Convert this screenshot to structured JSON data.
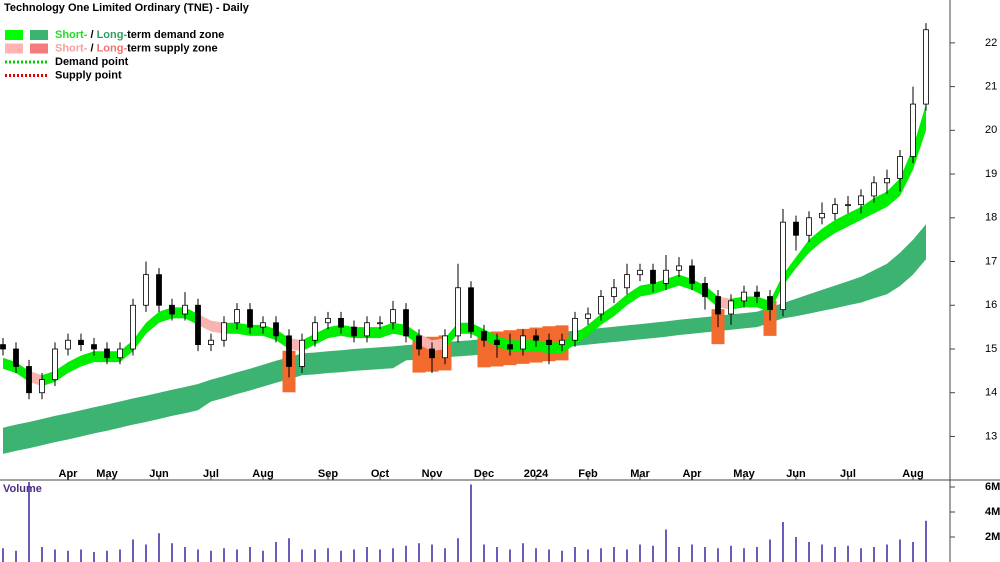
{
  "chart_data": [
    {
      "type": "candlestick",
      "title": "Technology One Limited Ordinary (TNE) - Daily",
      "categories": [
        null,
        null,
        null,
        null,
        null,
        "Apr",
        null,
        null,
        "May",
        null,
        null,
        null,
        "Jun",
        null,
        null,
        null,
        "Jul",
        null,
        null,
        null,
        "Aug",
        null,
        null,
        null,
        null,
        "Sep",
        null,
        null,
        null,
        "Oct",
        null,
        null,
        null,
        "Nov",
        null,
        null,
        null,
        "Dec",
        null,
        null,
        null,
        "2024",
        null,
        null,
        null,
        "Feb",
        null,
        null,
        null,
        "Mar",
        null,
        null,
        null,
        "Apr",
        null,
        null,
        null,
        "May",
        null,
        null,
        null,
        "Jun",
        null,
        null,
        null,
        "Jul",
        null,
        null,
        null,
        null,
        "Aug",
        null
      ],
      "open": [
        15.1,
        15.0,
        14.6,
        14.0,
        14.3,
        15.0,
        15.2,
        15.1,
        15.0,
        14.8,
        15.0,
        16.0,
        16.7,
        16.0,
        15.8,
        16.0,
        15.1,
        15.2,
        15.6,
        15.9,
        15.5,
        15.6,
        15.3,
        14.6,
        15.2,
        15.6,
        15.7,
        15.5,
        15.3,
        15.6,
        15.6,
        15.9,
        15.3,
        15.0,
        14.8,
        15.3,
        16.4,
        15.4,
        15.2,
        15.1,
        15.0,
        15.3,
        15.2,
        15.1,
        15.2,
        15.7,
        15.8,
        16.2,
        16.4,
        16.7,
        16.8,
        16.5,
        16.8,
        16.9,
        16.5,
        16.2,
        15.8,
        16.1,
        16.3,
        16.2,
        15.9,
        17.9,
        17.6,
        18.0,
        18.1,
        18.3,
        18.3,
        18.5,
        18.8,
        18.9,
        19.4,
        20.6
      ],
      "high": [
        15.25,
        15.15,
        14.75,
        14.45,
        15.15,
        15.35,
        15.35,
        15.25,
        15.15,
        15.15,
        16.15,
        17.0,
        16.85,
        16.15,
        16.3,
        16.15,
        15.35,
        15.75,
        16.05,
        16.05,
        15.75,
        15.75,
        15.45,
        15.35,
        15.75,
        15.85,
        15.85,
        15.65,
        15.75,
        15.75,
        16.1,
        16.05,
        15.45,
        15.15,
        15.45,
        16.95,
        16.55,
        15.55,
        15.35,
        15.35,
        15.45,
        15.45,
        15.35,
        15.35,
        15.85,
        15.95,
        16.35,
        16.6,
        16.95,
        16.95,
        16.95,
        17.15,
        17.1,
        17.05,
        16.65,
        16.35,
        16.25,
        16.45,
        16.45,
        16.35,
        18.2,
        18.05,
        18.15,
        18.35,
        18.45,
        18.5,
        18.65,
        18.95,
        19.1,
        19.55,
        21.0,
        22.45
      ],
      "low": [
        14.85,
        14.45,
        13.85,
        13.85,
        14.15,
        14.85,
        14.95,
        14.85,
        14.65,
        14.65,
        14.85,
        15.85,
        15.85,
        15.65,
        15.65,
        14.95,
        14.95,
        15.05,
        15.45,
        15.35,
        15.35,
        15.15,
        14.35,
        14.45,
        15.05,
        15.45,
        15.35,
        15.15,
        15.15,
        15.45,
        15.45,
        15.15,
        14.85,
        14.45,
        14.65,
        15.15,
        15.25,
        15.05,
        14.8,
        14.85,
        14.85,
        15.05,
        14.65,
        14.95,
        15.05,
        15.55,
        15.65,
        16.05,
        16.25,
        16.55,
        16.3,
        16.35,
        16.65,
        16.35,
        15.9,
        15.5,
        15.55,
        15.95,
        16.05,
        15.65,
        15.75,
        17.25,
        17.45,
        17.85,
        17.95,
        18.1,
        18.1,
        18.35,
        18.55,
        18.6,
        19.25,
        20.45
      ],
      "close": [
        15.0,
        14.6,
        14.0,
        14.3,
        15.0,
        15.2,
        15.1,
        15.0,
        14.8,
        15.0,
        16.0,
        16.7,
        16.0,
        15.8,
        16.0,
        15.1,
        15.2,
        15.6,
        15.9,
        15.5,
        15.6,
        15.3,
        14.6,
        15.2,
        15.6,
        15.7,
        15.5,
        15.3,
        15.6,
        15.6,
        15.9,
        15.3,
        15.0,
        14.8,
        15.3,
        16.4,
        15.4,
        15.2,
        15.1,
        15.0,
        15.3,
        15.2,
        15.1,
        15.2,
        15.7,
        15.8,
        16.2,
        16.4,
        16.7,
        16.8,
        16.5,
        16.8,
        16.9,
        16.5,
        16.2,
        15.8,
        16.1,
        16.3,
        16.2,
        15.9,
        17.9,
        17.6,
        18.0,
        18.1,
        18.3,
        18.3,
        18.5,
        18.8,
        18.9,
        19.4,
        20.6,
        22.3
      ],
      "up_color": "#ffffff",
      "down_color": "#000000",
      "short_term_zone": {
        "color": "#00ee00",
        "supply_color": "#f8b4b0",
        "upper": [
          14.8,
          14.7,
          14.5,
          14.4,
          14.5,
          14.7,
          14.85,
          14.95,
          14.95,
          14.95,
          15.2,
          15.6,
          15.85,
          15.95,
          15.95,
          15.8,
          15.65,
          15.6,
          15.6,
          15.55,
          15.55,
          15.45,
          15.25,
          15.2,
          15.35,
          15.5,
          15.55,
          15.5,
          15.5,
          15.5,
          15.6,
          15.55,
          15.35,
          15.2,
          15.25,
          15.6,
          15.6,
          15.45,
          15.3,
          15.2,
          15.2,
          15.2,
          15.15,
          15.15,
          15.35,
          15.55,
          15.8,
          16.0,
          16.25,
          16.45,
          16.5,
          16.6,
          16.7,
          16.6,
          16.45,
          16.2,
          16.15,
          16.2,
          16.2,
          16.1,
          16.7,
          17.1,
          17.5,
          17.75,
          17.95,
          18.1,
          18.25,
          18.45,
          18.6,
          18.9,
          19.6,
          20.6
        ],
        "lower": [
          14.55,
          14.45,
          14.25,
          14.15,
          14.25,
          14.45,
          14.6,
          14.7,
          14.7,
          14.7,
          14.95,
          15.35,
          15.6,
          15.7,
          15.7,
          15.55,
          15.4,
          15.35,
          15.35,
          15.3,
          15.3,
          15.2,
          15.0,
          14.95,
          15.1,
          15.25,
          15.3,
          15.25,
          15.25,
          15.25,
          15.35,
          15.3,
          15.1,
          14.95,
          15.0,
          15.35,
          15.35,
          15.2,
          15.05,
          14.95,
          14.95,
          14.95,
          14.9,
          14.9,
          15.1,
          15.3,
          15.55,
          15.75,
          16.0,
          16.2,
          16.25,
          16.35,
          16.45,
          16.35,
          16.2,
          15.95,
          15.9,
          15.95,
          15.95,
          15.85,
          16.45,
          16.85,
          17.2,
          17.45,
          17.65,
          17.8,
          17.95,
          18.1,
          18.25,
          18.5,
          19.1,
          20.0
        ]
      },
      "long_term_zone": {
        "color": "#3cb371",
        "supply_color": "#f26a2e",
        "upper": [
          13.2,
          13.27,
          13.33,
          13.4,
          13.47,
          13.53,
          13.6,
          13.67,
          13.73,
          13.8,
          13.87,
          13.93,
          14.0,
          14.07,
          14.13,
          14.2,
          14.3,
          14.38,
          14.47,
          14.55,
          14.64,
          14.73,
          14.81,
          14.9,
          14.92,
          14.95,
          14.97,
          15.0,
          15.02,
          15.04,
          15.06,
          15.09,
          15.11,
          15.13,
          15.16,
          15.18,
          15.2,
          15.23,
          15.25,
          15.28,
          15.31,
          15.34,
          15.37,
          15.39,
          15.42,
          15.45,
          15.48,
          15.51,
          15.54,
          15.57,
          15.6,
          15.63,
          15.67,
          15.7,
          15.73,
          15.76,
          15.79,
          15.82,
          15.85,
          15.95,
          16.05,
          16.15,
          16.25,
          16.35,
          16.45,
          16.55,
          16.65,
          16.8,
          16.95,
          17.2,
          17.5,
          17.85
        ],
        "lower": [
          12.6,
          12.67,
          12.73,
          12.8,
          12.87,
          12.93,
          13.0,
          13.07,
          13.13,
          13.2,
          13.27,
          13.33,
          13.4,
          13.47,
          13.53,
          13.6,
          13.8,
          13.88,
          13.97,
          14.05,
          14.14,
          14.23,
          14.31,
          14.4,
          14.42,
          14.45,
          14.47,
          14.5,
          14.52,
          14.54,
          14.56,
          14.74,
          14.76,
          14.78,
          14.81,
          14.83,
          14.85,
          14.88,
          14.9,
          14.93,
          14.96,
          14.99,
          15.02,
          15.04,
          15.07,
          15.1,
          15.13,
          15.16,
          15.19,
          15.22,
          15.25,
          15.28,
          15.32,
          15.35,
          15.38,
          15.41,
          15.44,
          15.47,
          15.5,
          15.6,
          15.7,
          15.75,
          15.81,
          15.87,
          15.93,
          16.0,
          16.06,
          16.16,
          16.25,
          16.44,
          16.7,
          17.05
        ]
      },
      "ylim": [
        12.05,
        22.98
      ],
      "yticks": [
        13,
        14,
        15,
        16,
        17,
        18,
        19,
        20,
        21,
        22
      ],
      "legend": [
        {
          "texts": [
            "Short-",
            " / ",
            "Long-",
            "term demand zone"
          ],
          "text_colors": [
            "#22dd22",
            "#000000",
            "#2e9e63",
            "#000000"
          ],
          "swatch_colors": [
            "#00ff00",
            "#3cb371"
          ]
        },
        {
          "texts": [
            "Short-",
            " / ",
            "Long-",
            "term supply zone"
          ],
          "text_colors": [
            "#f4a0a0",
            "#000000",
            "#f07070",
            "#000000"
          ],
          "swatch_colors": [
            "#ffb3b3",
            "#f47c7c"
          ]
        },
        {
          "texts": [
            "Demand point"
          ],
          "text_colors": [
            "#000000"
          ],
          "line_color": "#00cc00"
        },
        {
          "texts": [
            "Supply point"
          ],
          "text_colors": [
            "#000000"
          ],
          "line_color": "#dd0000"
        }
      ]
    },
    {
      "type": "bar",
      "title": "Volume",
      "color": "#6a5cb8",
      "values": [
        1100000,
        900000,
        6400000,
        1200000,
        1000000,
        900000,
        1000000,
        800000,
        900000,
        1000000,
        1800000,
        1400000,
        2300000,
        1500000,
        1200000,
        1000000,
        900000,
        1100000,
        1000000,
        1200000,
        900000,
        1600000,
        1900000,
        1000000,
        1000000,
        1100000,
        900000,
        1000000,
        1200000,
        1000000,
        1100000,
        1300000,
        1500000,
        1400000,
        1100000,
        1900000,
        6200000,
        1400000,
        1200000,
        1000000,
        1500000,
        1100000,
        1000000,
        900000,
        1200000,
        1000000,
        1100000,
        1200000,
        1000000,
        1400000,
        1300000,
        2600000,
        1200000,
        1400000,
        1200000,
        1100000,
        1300000,
        1100000,
        1200000,
        1800000,
        3200000,
        2000000,
        1600000,
        1400000,
        1200000,
        1300000,
        1100000,
        1200000,
        1400000,
        1800000,
        1600000,
        3300000
      ],
      "ylim": [
        0,
        6560000
      ],
      "yticks": [
        {
          "value": 2000000,
          "label": "2M"
        },
        {
          "value": 4000000,
          "label": "4M"
        },
        {
          "value": 6000000,
          "label": "6M"
        }
      ]
    }
  ]
}
